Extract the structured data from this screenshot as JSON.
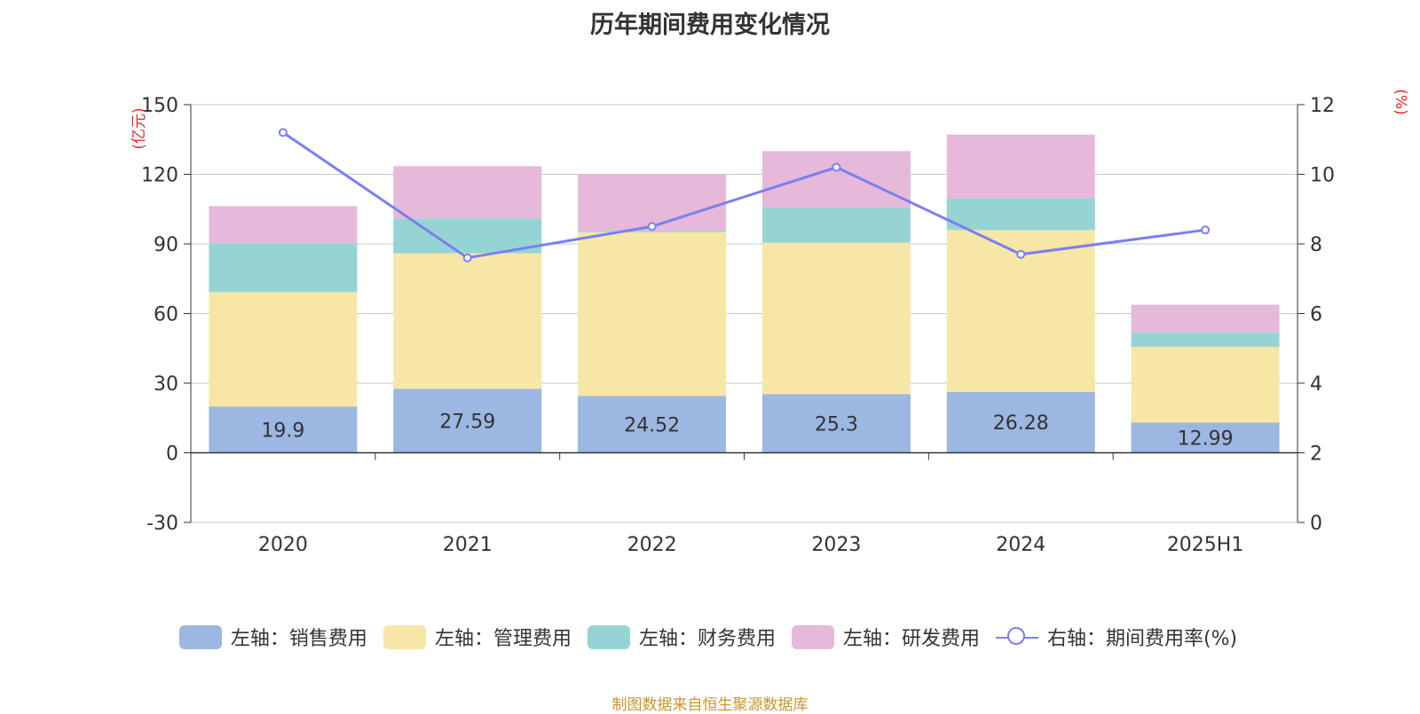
{
  "title": "历年期间费用变化情况",
  "source": "制图数据来自恒生聚源数据库",
  "colors": {
    "sales": "#9bb7e2",
    "admin": "#f7e7a6",
    "finance": "#96d4d4",
    "rnd": "#e6b8d9",
    "rate": "#7b7ff0",
    "axis_unit": "#e8262a"
  },
  "chart_data": {
    "type": "bar",
    "stacked": true,
    "categories": [
      "2020",
      "2021",
      "2022",
      "2023",
      "2024",
      "2025H1"
    ],
    "left_axis": {
      "label": "(亿元)",
      "ylim": [
        -30,
        150
      ],
      "ticks": [
        -30,
        0,
        30,
        60,
        90,
        120,
        150
      ]
    },
    "right_axis": {
      "label": "(%)",
      "ylim": [
        0,
        12
      ],
      "ticks": [
        0,
        2,
        4,
        6,
        8,
        10,
        12
      ]
    },
    "grid": true,
    "legend_position": "bottom",
    "series": [
      {
        "name": "左轴：销售费用",
        "key": "sales",
        "axis": "left",
        "values": [
          19.9,
          27.59,
          24.52,
          25.3,
          26.28,
          12.99
        ],
        "labels_shown": [
          "19.9",
          "27.59",
          "24.52",
          "25.3",
          "26.28",
          "12.99"
        ]
      },
      {
        "name": "左轴：管理费用",
        "key": "admin",
        "axis": "left",
        "values": [
          49.3,
          58.4,
          70.5,
          65.2,
          69.7,
          32.6
        ]
      },
      {
        "name": "左轴：财务费用",
        "key": "finance",
        "axis": "left",
        "values": [
          20.8,
          15.0,
          0.6,
          15.2,
          13.8,
          6.3
        ]
      },
      {
        "name": "左轴：研发费用",
        "key": "rnd",
        "axis": "left",
        "values": [
          16.3,
          22.5,
          24.4,
          24.3,
          27.3,
          11.9
        ]
      },
      {
        "name": "右轴：期间费用率(%)",
        "key": "rate",
        "axis": "right",
        "type": "line",
        "values": [
          11.2,
          7.6,
          8.5,
          10.2,
          7.7,
          8.4
        ]
      }
    ]
  }
}
